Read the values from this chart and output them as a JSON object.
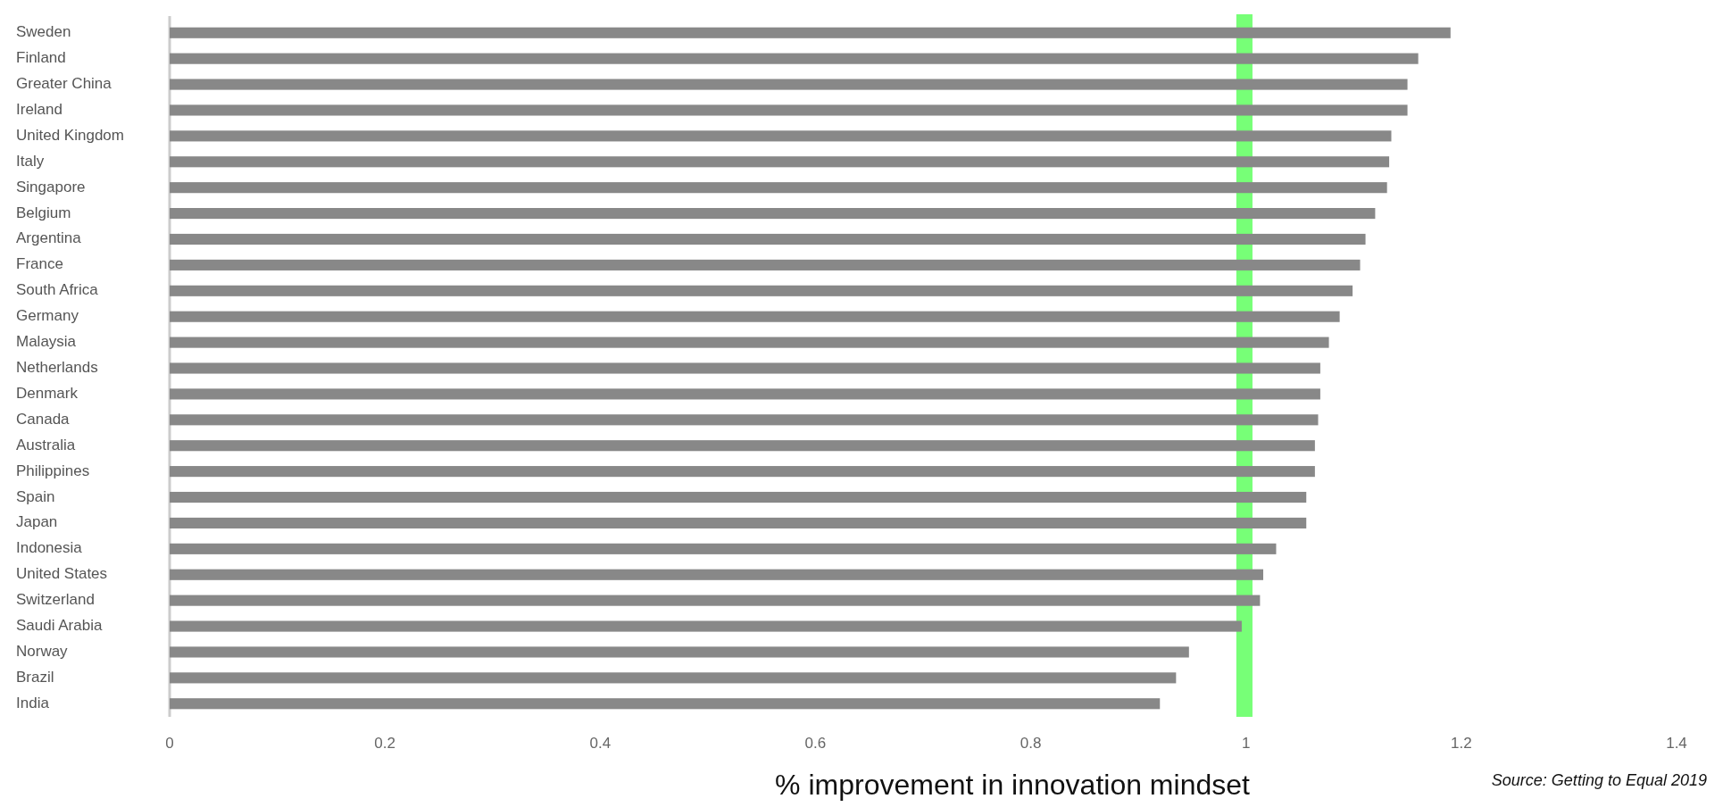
{
  "chart_data": {
    "type": "bar",
    "orientation": "horizontal",
    "xlabel": "% improvement in innovation mindset",
    "categories": [
      "Sweden",
      "Finland",
      "Greater China",
      "Ireland",
      "United Kingdom",
      "Italy",
      "Singapore",
      "Belgium",
      "Argentina",
      "France",
      "South Africa",
      "Germany",
      "Malaysia",
      "Netherlands",
      "Denmark",
      "Canada",
      "Australia",
      "Philippines",
      "Spain",
      "Japan",
      "Indonesia",
      "United States",
      "Switzerland",
      "Saudi Arabia",
      "Norway",
      "Brazil",
      "India"
    ],
    "values": [
      1.19,
      1.16,
      1.15,
      1.15,
      1.135,
      1.133,
      1.131,
      1.12,
      1.111,
      1.106,
      1.099,
      1.087,
      1.077,
      1.069,
      1.069,
      1.067,
      1.064,
      1.064,
      1.056,
      1.056,
      1.028,
      1.016,
      1.013,
      0.996,
      0.947,
      0.935,
      0.92
    ],
    "color": "#888888",
    "xlim": [
      0,
      1.4
    ],
    "xticks": [
      0,
      0.2,
      0.4,
      0.6,
      0.8,
      1,
      1.2,
      1.4
    ],
    "bands": [
      {
        "axis": "x",
        "from": 0.991,
        "to": 1.006,
        "color": "#77ff77"
      }
    ],
    "annotations": [
      "Source: Getting to Equal 2019"
    ]
  }
}
